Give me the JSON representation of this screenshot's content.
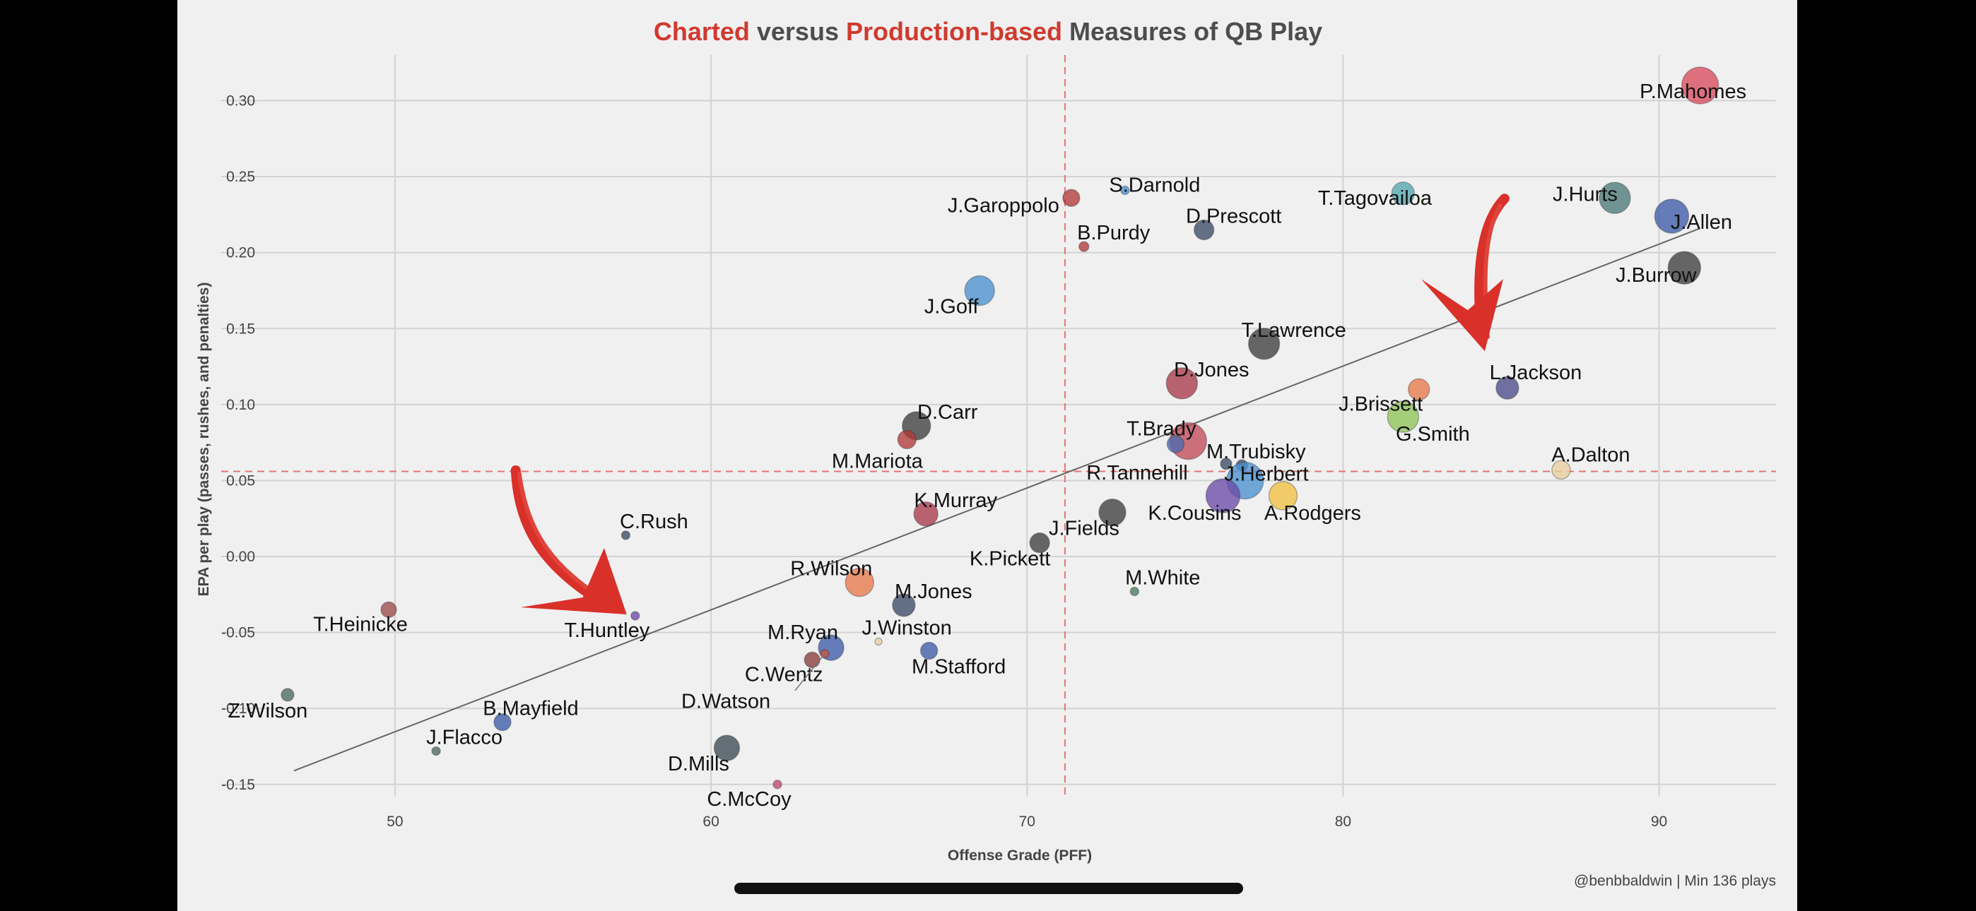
{
  "chart_data": {
    "type": "scatter",
    "title_parts": [
      {
        "text": "Charted",
        "color": "#d03a2f"
      },
      {
        "text": " versus ",
        "color": "#4d4d4d"
      },
      {
        "text": "Production-based",
        "color": "#d03a2f"
      },
      {
        "text": " Measures of QB Play",
        "color": "#4d4d4d"
      }
    ],
    "xlabel": "Offense Grade (PFF)",
    "ylabel": "EPA per play (passes, rushes, and penalties)",
    "xlim": [
      44.5,
      93.7
    ],
    "ylim": [
      -0.158,
      0.33
    ],
    "xticks": [
      50,
      60,
      70,
      80,
      90
    ],
    "yticks": [
      0.3,
      0.25,
      0.2,
      0.15,
      0.1,
      0.05,
      0.0,
      -0.05,
      -0.1,
      -0.15
    ],
    "ytick_labels": [
      "0.30",
      "0.25",
      "0.20",
      "0.15",
      "0.10",
      "0.05",
      "0.00",
      "-0.05",
      "-0.10",
      "-0.15"
    ],
    "grid": true,
    "mean_x": 71.2,
    "mean_y": 0.056,
    "trendline": {
      "x0": 46.8,
      "y0": -0.141,
      "x1": 91.3,
      "y1": 0.216
    },
    "caption": "@benbbaldwin | Min 136 plays",
    "points": [
      {
        "name": "P.Mahomes",
        "x": 91.3,
        "y": 0.31,
        "size": 26,
        "color": "#d94c5e",
        "dx": -10,
        "dy": 8,
        "anchor": "middle",
        "valign": "top"
      },
      {
        "name": "J.Hurts",
        "x": 88.6,
        "y": 0.236,
        "size": 22,
        "color": "#4a7a78",
        "dx": -42,
        "dy": -6,
        "anchor": "middle",
        "valign": "bottom"
      },
      {
        "name": "J.Allen",
        "x": 90.4,
        "y": 0.224,
        "size": 24,
        "color": "#3c5ba8",
        "dx": 42,
        "dy": 8,
        "anchor": "middle",
        "valign": "top"
      },
      {
        "name": "J.Burrow",
        "x": 90.8,
        "y": 0.19,
        "size": 23,
        "color": "#3d3d3d",
        "dx": -40,
        "dy": 10,
        "anchor": "middle",
        "valign": "top"
      },
      {
        "name": "T.Tagovailoa",
        "x": 81.9,
        "y": 0.239,
        "size": 16,
        "color": "#55a8b0",
        "dx": -40,
        "dy": 6,
        "anchor": "middle",
        "valign": "top"
      },
      {
        "name": "S.Darnold",
        "x": 73.1,
        "y": 0.241,
        "size": 6,
        "color": "#4a8fd0",
        "dx": 42,
        "dy": -8,
        "anchor": "middle",
        "valign": "bottom"
      },
      {
        "name": "J.Garoppolo",
        "x": 71.4,
        "y": 0.236,
        "size": 12,
        "color": "#b03a3a",
        "dx": -96,
        "dy": 10,
        "anchor": "middle",
        "valign": "center"
      },
      {
        "name": "B.Purdy",
        "x": 71.8,
        "y": 0.204,
        "size": 7,
        "color": "#b03a3a",
        "dx": 42,
        "dy": -20,
        "anchor": "middle",
        "valign": "center"
      },
      {
        "name": "D.Prescott",
        "x": 75.6,
        "y": 0.215,
        "size": 14,
        "color": "#3b4a66",
        "dx": 42,
        "dy": -20,
        "anchor": "middle",
        "valign": "center"
      },
      {
        "name": "J.Goff",
        "x": 68.5,
        "y": 0.175,
        "size": 21,
        "color": "#4a8fd0",
        "dx": -40,
        "dy": 22,
        "anchor": "middle",
        "valign": "center"
      },
      {
        "name": "T.Lawrence",
        "x": 77.5,
        "y": 0.14,
        "size": 22,
        "color": "#3d3d3d",
        "dx": 42,
        "dy": -20,
        "anchor": "middle",
        "valign": "center"
      },
      {
        "name": "D.Jones",
        "x": 74.9,
        "y": 0.114,
        "size": 22,
        "color": "#a93a4a",
        "dx": 42,
        "dy": -20,
        "anchor": "middle",
        "valign": "center"
      },
      {
        "name": "L.Jackson",
        "x": 85.2,
        "y": 0.111,
        "size": 16,
        "color": "#4a4a8a",
        "dx": 40,
        "dy": -22,
        "anchor": "middle",
        "valign": "center"
      },
      {
        "name": "J.Brissett",
        "x": 82.4,
        "y": 0.11,
        "size": 15,
        "color": "#e8784a",
        "dx": -54,
        "dy": 20,
        "anchor": "middle",
        "valign": "center"
      },
      {
        "name": "G.Smith",
        "x": 81.9,
        "y": 0.092,
        "size": 22,
        "color": "#8fc45a",
        "dx": 42,
        "dy": 24,
        "anchor": "middle",
        "valign": "center"
      },
      {
        "name": "D.Carr",
        "x": 66.5,
        "y": 0.086,
        "size": 20,
        "color": "#3d3d3d",
        "dx": 44,
        "dy": -20,
        "anchor": "middle",
        "valign": "center"
      },
      {
        "name": "M.Mariota",
        "x": 66.2,
        "y": 0.077,
        "size": 13,
        "color": "#b03a3a",
        "dx": -42,
        "dy": 30,
        "anchor": "middle",
        "valign": "center"
      },
      {
        "name": "T.Brady",
        "x": 75.1,
        "y": 0.076,
        "size": 26,
        "color": "#c04a5a",
        "dx": -38,
        "dy": -18,
        "anchor": "middle",
        "valign": "center"
      },
      {
        "name": "T.Brady-2",
        "label": "",
        "x": 74.7,
        "y": 0.074,
        "size": 12,
        "color": "#4a6ab0",
        "dx": 0,
        "dy": 0,
        "anchor": "middle",
        "valign": "center"
      },
      {
        "name": "R.Tannehill",
        "x": 76.3,
        "y": 0.061,
        "size": 8,
        "color": "#3b4a66",
        "dx": -126,
        "dy": 12,
        "anchor": "middle",
        "valign": "center"
      },
      {
        "name": "M.Trubisky",
        "x": 76.8,
        "y": 0.06,
        "size": 8,
        "color": "#3b4a66",
        "dx": 20,
        "dy": -20,
        "anchor": "middle",
        "valign": "center"
      },
      {
        "name": "J.Herbert",
        "x": 76.9,
        "y": 0.05,
        "size": 26,
        "color": "#4a90d0",
        "dx": 30,
        "dy": -10,
        "anchor": "middle",
        "valign": "center"
      },
      {
        "name": "K.Cousins",
        "x": 76.2,
        "y": 0.04,
        "size": 24,
        "color": "#6a4aa8",
        "dx": -40,
        "dy": 24,
        "anchor": "middle",
        "valign": "center"
      },
      {
        "name": "A.Rodgers",
        "x": 78.1,
        "y": 0.04,
        "size": 20,
        "color": "#f0c040",
        "dx": 42,
        "dy": 24,
        "anchor": "middle",
        "valign": "center"
      },
      {
        "name": "A.Dalton",
        "x": 86.9,
        "y": 0.057,
        "size": 13,
        "color": "#e8d0a0",
        "dx": 42,
        "dy": -22,
        "anchor": "middle",
        "valign": "center"
      },
      {
        "name": "K.Murray",
        "x": 66.8,
        "y": 0.028,
        "size": 17,
        "color": "#a93a4a",
        "dx": 42,
        "dy": -20,
        "anchor": "middle",
        "valign": "center"
      },
      {
        "name": "J.Fields",
        "x": 72.7,
        "y": 0.029,
        "size": 19,
        "color": "#3d3d3d",
        "dx": -40,
        "dy": 22,
        "anchor": "middle",
        "valign": "center"
      },
      {
        "name": "K.Pickett",
        "x": 70.4,
        "y": 0.009,
        "size": 14,
        "color": "#3d3d3d",
        "dx": -42,
        "dy": 22,
        "anchor": "middle",
        "valign": "center"
      },
      {
        "name": "C.Rush",
        "x": 57.3,
        "y": 0.014,
        "size": 6,
        "color": "#3b4a66",
        "dx": 40,
        "dy": -20,
        "anchor": "middle",
        "valign": "center"
      },
      {
        "name": "R.Wilson",
        "x": 64.7,
        "y": -0.017,
        "size": 20,
        "color": "#e8784a",
        "dx": -40,
        "dy": -20,
        "anchor": "middle",
        "valign": "center"
      },
      {
        "name": "M.Jones",
        "x": 66.1,
        "y": -0.032,
        "size": 16,
        "color": "#3b4a66",
        "dx": 42,
        "dy": -20,
        "anchor": "middle",
        "valign": "center"
      },
      {
        "name": "M.White",
        "x": 73.4,
        "y": -0.023,
        "size": 6,
        "color": "#4a7a5a",
        "dx": 40,
        "dy": -20,
        "anchor": "middle",
        "valign": "center"
      },
      {
        "name": "T.Heinicke",
        "x": 49.8,
        "y": -0.035,
        "size": 11,
        "color": "#9a4a4a",
        "dx": -40,
        "dy": 20,
        "anchor": "middle",
        "valign": "center"
      },
      {
        "name": "T.Huntley",
        "x": 57.6,
        "y": -0.039,
        "size": 6,
        "color": "#6a4aa8",
        "dx": -40,
        "dy": 20,
        "anchor": "middle",
        "valign": "center"
      },
      {
        "name": "M.Ryan",
        "x": 63.8,
        "y": -0.06,
        "size": 18,
        "color": "#3c5ba8",
        "dx": -40,
        "dy": -22,
        "anchor": "middle",
        "valign": "center"
      },
      {
        "name": "J.Winston",
        "x": 65.3,
        "y": -0.056,
        "size": 5,
        "color": "#e8d0a0",
        "dx": 40,
        "dy": -20,
        "anchor": "middle",
        "valign": "center"
      },
      {
        "name": "M.Stafford",
        "x": 66.9,
        "y": -0.062,
        "size": 12,
        "color": "#3c5ba8",
        "dx": 42,
        "dy": 22,
        "anchor": "middle",
        "valign": "center"
      },
      {
        "name": "C.Wentz",
        "x": 63.2,
        "y": -0.068,
        "size": 11,
        "color": "#8a3a3a",
        "dx": -40,
        "dy": 20,
        "anchor": "middle",
        "valign": "center"
      },
      {
        "name": "D.Watson",
        "x": 63.6,
        "y": -0.064,
        "size": 6,
        "color": "#d05040",
        "dx": -140,
        "dy": 67,
        "anchor": "middle",
        "valign": "center"
      },
      {
        "name": "Z.Wilson",
        "x": 46.6,
        "y": -0.091,
        "size": 9,
        "color": "#4a6a5a",
        "dx": -28,
        "dy": 22,
        "anchor": "middle",
        "valign": "center"
      },
      {
        "name": "B.Mayfield",
        "x": 53.4,
        "y": -0.109,
        "size": 12,
        "color": "#3c5ba8",
        "dx": 40,
        "dy": -20,
        "anchor": "middle",
        "valign": "center"
      },
      {
        "name": "J.Flacco",
        "x": 51.3,
        "y": -0.128,
        "size": 6,
        "color": "#4a6a5a",
        "dx": 40,
        "dy": -20,
        "anchor": "middle",
        "valign": "center"
      },
      {
        "name": "D.Mills",
        "x": 60.5,
        "y": -0.126,
        "size": 18,
        "color": "#3b4a55",
        "dx": -40,
        "dy": 22,
        "anchor": "middle",
        "valign": "center"
      },
      {
        "name": "C.McCoy",
        "x": 62.1,
        "y": -0.15,
        "size": 6,
        "color": "#c04a6a",
        "dx": -40,
        "dy": 20,
        "anchor": "middle",
        "valign": "center"
      }
    ],
    "annotations": [
      {
        "name": "arrow-to-t-huntley",
        "type": "red-arrow",
        "points_to": "T.Huntley"
      },
      {
        "name": "arrow-to-l-jackson",
        "type": "red-arrow",
        "points_to": "L.Jackson"
      }
    ]
  }
}
